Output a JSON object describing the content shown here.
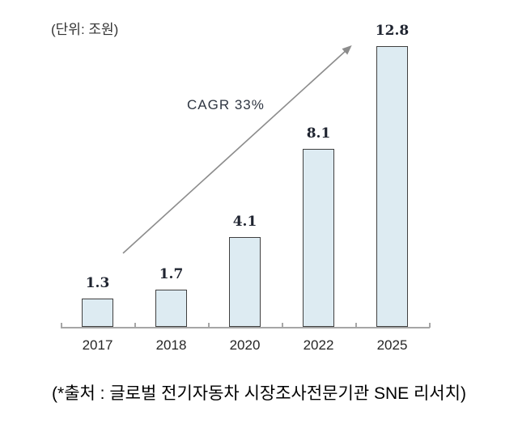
{
  "unit_label": "(단위: 조원)",
  "annotation": {
    "cagr_label": "CAGR 33%"
  },
  "source": "(*출처 : 글로벌 전기자동차 시장조사전문기관 SNE 리서치)",
  "chart_data": {
    "type": "bar",
    "title": "",
    "xlabel": "",
    "ylabel": "조원",
    "unit": "조원",
    "categories": [
      "2017",
      "2018",
      "2020",
      "2022",
      "2025"
    ],
    "values": [
      1.3,
      1.7,
      4.1,
      8.1,
      12.8
    ],
    "value_labels": [
      "1.3",
      "1.7",
      "4.1",
      "8.1",
      "12.8"
    ],
    "ylim": [
      0,
      13
    ],
    "grid": false,
    "legend": false,
    "annotations": [
      "CAGR 33%"
    ],
    "colors": {
      "bar_fill": "#ddebf2",
      "bar_border": "#404040",
      "axis": "#a6a6a6",
      "arrow": "#8c8c8c",
      "value_label": "#1f2430",
      "tick_label": "#262626"
    }
  }
}
